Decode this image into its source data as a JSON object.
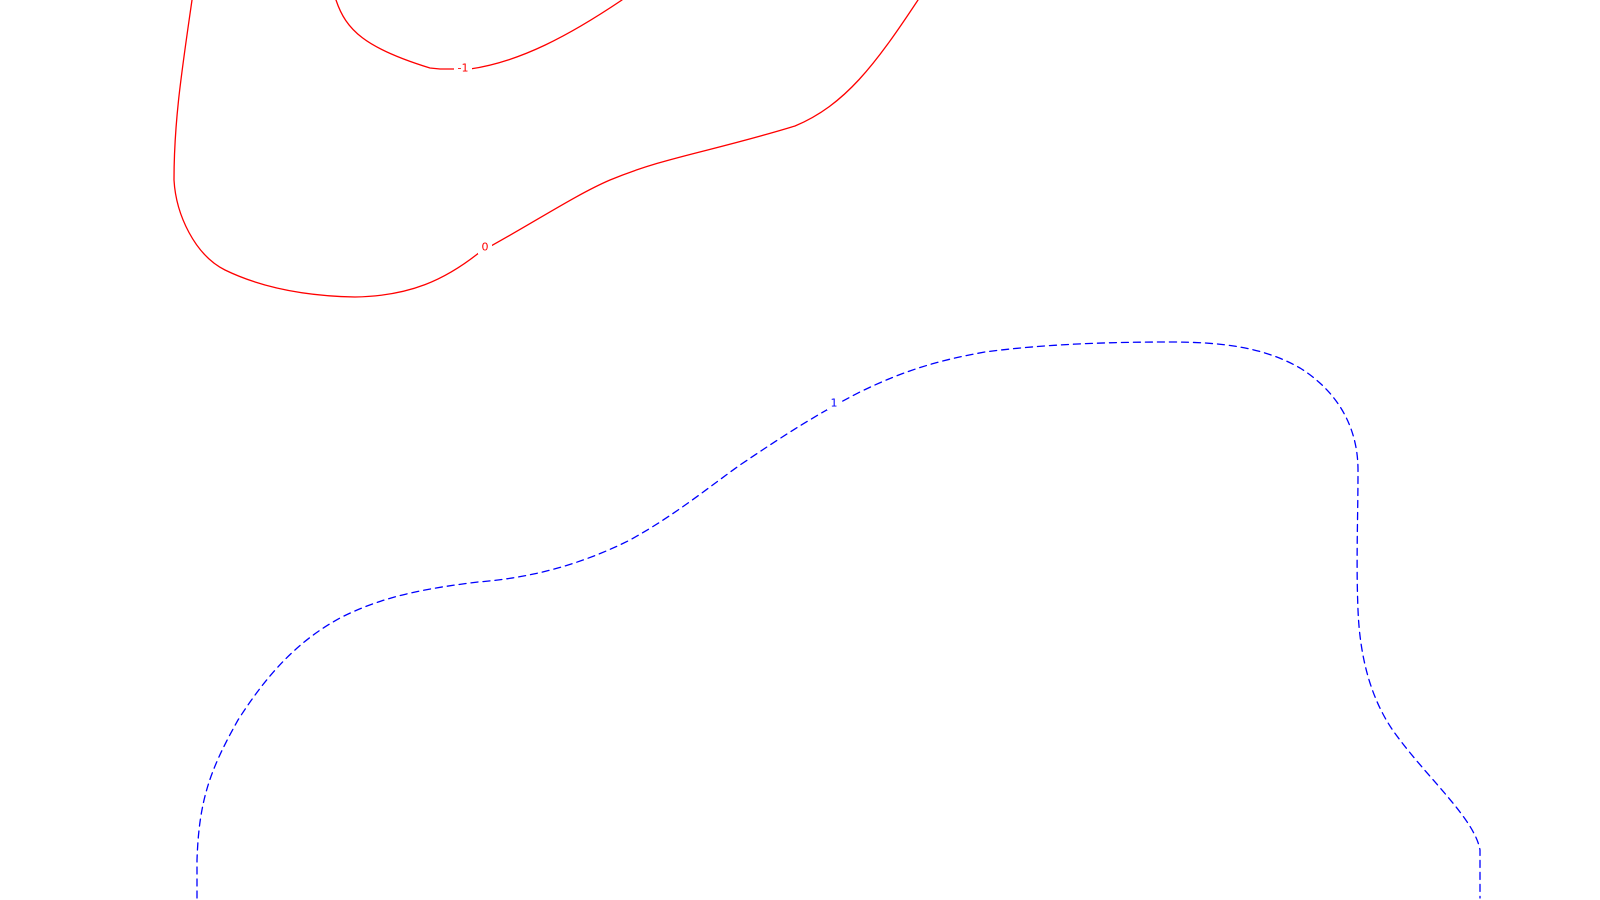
{
  "chart_data": {
    "type": "contour",
    "title": "",
    "xlabel": "",
    "ylabel": "",
    "grid": false,
    "legend": "none",
    "contours": [
      {
        "level": "-1",
        "color": "#ff0000",
        "style": "solid",
        "label": "-1"
      },
      {
        "level": "0",
        "color": "#ff0000",
        "style": "solid",
        "label": "0"
      },
      {
        "level": "1",
        "color": "#0000ff",
        "style": "dashed",
        "label": "1"
      }
    ]
  }
}
